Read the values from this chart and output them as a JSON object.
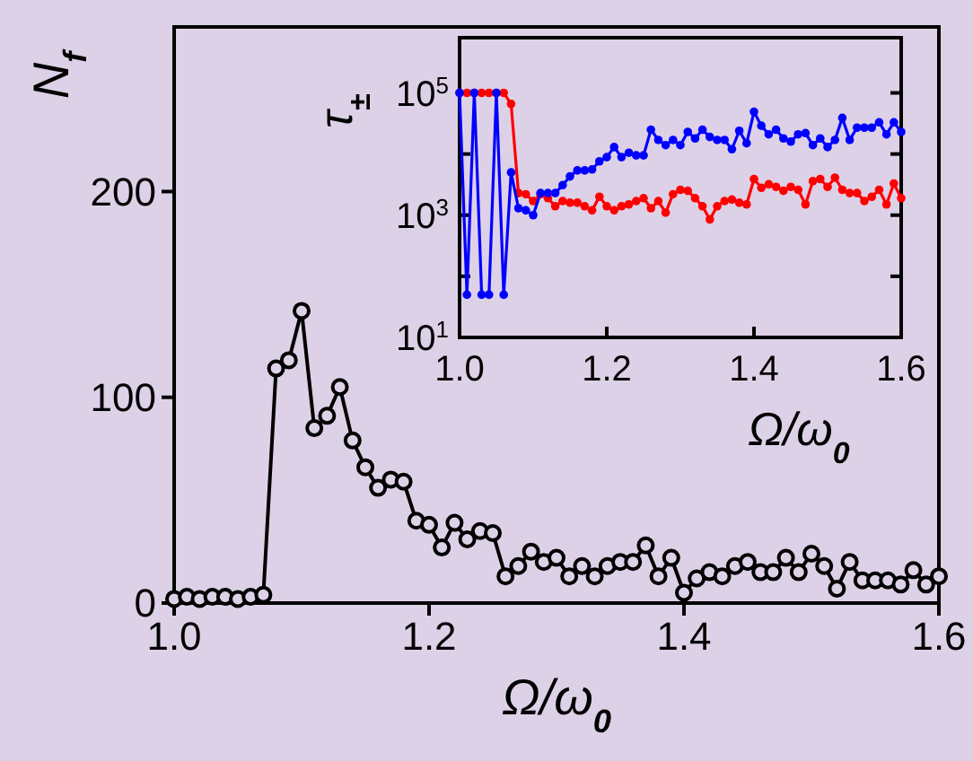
{
  "chart_data": [
    {
      "type": "line",
      "xlabel": "Ω/ω$_{0}$",
      "ylabel": "N$_{f}$",
      "marker": "circle",
      "xlim": [
        1.0,
        1.6
      ],
      "ylim": [
        0,
        280
      ],
      "xticks": [
        {
          "value": 1.0,
          "label": "1.0"
        },
        {
          "value": 1.2,
          "label": "1.2"
        },
        {
          "value": 1.4,
          "label": "1.4"
        },
        {
          "value": 1.6,
          "label": "1.6"
        }
      ],
      "yticks": [
        0,
        100,
        200
      ],
      "x": [
        1.0,
        1.01,
        1.02,
        1.03,
        1.04,
        1.05,
        1.06,
        1.07,
        1.08,
        1.09,
        1.1,
        1.11,
        1.12,
        1.13,
        1.14,
        1.15,
        1.16,
        1.17,
        1.18,
        1.19,
        1.2,
        1.21,
        1.22,
        1.23,
        1.24,
        1.25,
        1.26,
        1.27,
        1.28,
        1.29,
        1.3,
        1.31,
        1.32,
        1.33,
        1.34,
        1.35,
        1.36,
        1.37,
        1.38,
        1.39,
        1.4,
        1.41,
        1.42,
        1.43,
        1.44,
        1.45,
        1.46,
        1.47,
        1.48,
        1.49,
        1.5,
        1.51,
        1.52,
        1.53,
        1.54,
        1.55,
        1.56,
        1.57,
        1.58,
        1.59,
        1.6
      ],
      "series": [
        {
          "color": "#000000",
          "values": [
            2,
            3,
            2,
            3,
            3,
            2,
            3,
            4,
            114,
            118,
            142,
            85,
            91,
            105,
            79,
            66,
            56,
            60,
            59,
            40,
            38,
            27,
            39,
            31,
            35,
            34,
            13,
            18,
            25,
            20,
            22,
            13,
            18,
            13,
            18,
            20,
            20,
            28,
            13,
            22,
            5,
            12,
            15,
            13,
            18,
            20,
            15,
            15,
            22,
            15,
            24,
            18,
            7,
            20,
            11,
            11,
            11,
            9,
            16,
            9,
            13
          ]
        }
      ]
    },
    {
      "type": "line",
      "xlabel": "Ω/ω$_{0}$",
      "ylabel": "τ$_{±}$",
      "marker": "circle",
      "log": "y",
      "xlim": [
        1.0,
        1.6
      ],
      "ylim": [
        10,
        800000
      ],
      "xticks": [
        {
          "value": 1.0,
          "label": "1.0"
        },
        {
          "value": 1.2,
          "label": "1.2"
        },
        {
          "value": 1.4,
          "label": "1.4"
        },
        {
          "value": 1.6,
          "label": "1.6"
        }
      ],
      "yticks": [
        {
          "value": 10,
          "label": "10$^{1}$"
        },
        {
          "value": 100,
          "label": null
        },
        {
          "value": 1000,
          "label": "10$^{3}$"
        },
        {
          "value": 10000,
          "label": null
        },
        {
          "value": 100000,
          "label": "10$^{5}$"
        }
      ],
      "x": [
        1.0,
        1.01,
        1.02,
        1.03,
        1.04,
        1.05,
        1.06,
        1.07,
        1.08,
        1.09,
        1.1,
        1.11,
        1.12,
        1.13,
        1.14,
        1.15,
        1.16,
        1.17,
        1.18,
        1.19,
        1.2,
        1.21,
        1.22,
        1.23,
        1.24,
        1.25,
        1.26,
        1.27,
        1.28,
        1.29,
        1.3,
        1.31,
        1.32,
        1.33,
        1.34,
        1.35,
        1.36,
        1.37,
        1.38,
        1.39,
        1.4,
        1.41,
        1.42,
        1.43,
        1.44,
        1.45,
        1.46,
        1.47,
        1.48,
        1.49,
        1.5,
        1.51,
        1.52,
        1.53,
        1.54,
        1.55,
        1.56,
        1.57,
        1.58,
        1.59,
        1.6
      ],
      "series": [
        {
          "color": "#ff0000",
          "values": [
            100000,
            100000,
            100000,
            100000,
            100000,
            100000,
            100000,
            66000,
            2300,
            2200,
            1700,
            2200,
            1900,
            1400,
            1700,
            1600,
            1600,
            1400,
            1200,
            2000,
            1400,
            1200,
            1400,
            1500,
            1700,
            1900,
            1300,
            1700,
            1100,
            2200,
            2600,
            2500,
            1900,
            1400,
            850,
            1400,
            1700,
            1800,
            1600,
            1500,
            3900,
            2800,
            3200,
            2900,
            2500,
            2900,
            2600,
            1500,
            3600,
            3900,
            2900,
            4100,
            2600,
            2300,
            2300,
            1700,
            2000,
            2600,
            1500,
            3300,
            1900
          ]
        },
        {
          "color": "#0000ff",
          "values": [
            100000,
            50,
            100000,
            50,
            50,
            100000,
            50,
            5000,
            1300,
            1200,
            1000,
            2300,
            2300,
            2300,
            3100,
            4300,
            5400,
            5400,
            5600,
            7600,
            8900,
            13000,
            8900,
            10500,
            9500,
            9500,
            25000,
            17000,
            14000,
            17000,
            14000,
            23000,
            18000,
            25000,
            19000,
            17000,
            17000,
            12000,
            24000,
            15000,
            49000,
            29000,
            21000,
            25000,
            18000,
            16000,
            21000,
            22000,
            14000,
            18000,
            13000,
            17000,
            39000,
            17000,
            27000,
            27000,
            27000,
            33000,
            21000,
            33000,
            23000
          ]
        }
      ]
    }
  ]
}
